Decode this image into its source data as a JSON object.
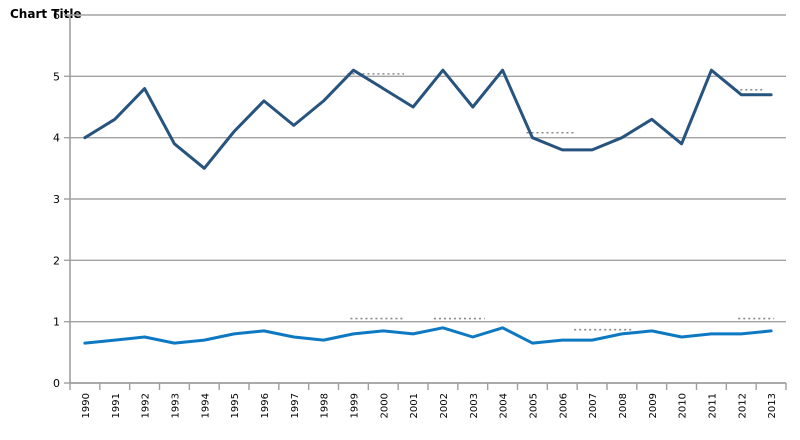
{
  "title": "Chart Title",
  "colors": {
    "series_top": "#27547F",
    "series_bottom": "#0E79C3",
    "gridline": "#A3A3A3",
    "axis": "#9E9E9E",
    "annotation_dots": "#8A8A8A",
    "text": "#000000",
    "background": "#FFFFFF"
  },
  "chart_data": {
    "type": "line",
    "title": "Chart Title",
    "xlabel": "",
    "ylabel": "",
    "ylim": [
      0,
      6
    ],
    "y_ticks": [
      0,
      1,
      2,
      3,
      4,
      5,
      6
    ],
    "y_tick_labels": [
      "0",
      "1",
      "2",
      "3",
      "4",
      "5",
      "6"
    ],
    "grid": "horizontal",
    "legend_position": "none",
    "x_labels": [
      "1990",
      "1991",
      "1992",
      "1993",
      "1994",
      "1995",
      "1996",
      "1997",
      "1998",
      "1999",
      "2000",
      "2001",
      "2002",
      "2003",
      "2004",
      "2005",
      "2006",
      "2007",
      "2008",
      "2009",
      "2010",
      "2011",
      "2012",
      "2013"
    ],
    "series": [
      {
        "name": "series-1-dark-blue",
        "color": "#27547F",
        "stroke_width": 3,
        "values": [
          4.0,
          4.3,
          4.8,
          3.9,
          3.5,
          4.1,
          4.6,
          4.2,
          4.6,
          5.1,
          4.8,
          4.5,
          5.1,
          4.5,
          5.1,
          4.0,
          3.8,
          3.8,
          4.0,
          4.3,
          3.9,
          5.1,
          4.7,
          4.7
        ]
      },
      {
        "name": "series-2-bright-blue",
        "color": "#0E79C3",
        "stroke_width": 3,
        "values": [
          0.65,
          0.7,
          0.75,
          0.65,
          0.7,
          0.8,
          0.85,
          0.75,
          0.7,
          0.8,
          0.85,
          0.8,
          0.9,
          0.75,
          0.9,
          0.65,
          0.7,
          0.7,
          0.8,
          0.85,
          0.75,
          0.8,
          0.8,
          0.85
        ]
      }
    ],
    "dotted_annotation_marks": [
      {
        "x1_idx": 9.3,
        "x2_idx": 11.2,
        "y_val": 5.04
      },
      {
        "x1_idx": 15.3,
        "x2_idx": 16.9,
        "y_val": 4.08
      },
      {
        "x1_idx": 9.4,
        "x2_idx": 11.2,
        "y_val": 1.05
      },
      {
        "x1_idx": 12.2,
        "x2_idx": 13.9,
        "y_val": 1.05
      },
      {
        "x1_idx": 16.9,
        "x2_idx": 18.9,
        "y_val": 0.87
      },
      {
        "x1_idx": 22.4,
        "x2_idx": 23.6,
        "y_val": 1.05
      },
      {
        "x1_idx": 22.3,
        "x2_idx": 23.2,
        "y_val": 4.78
      }
    ]
  }
}
